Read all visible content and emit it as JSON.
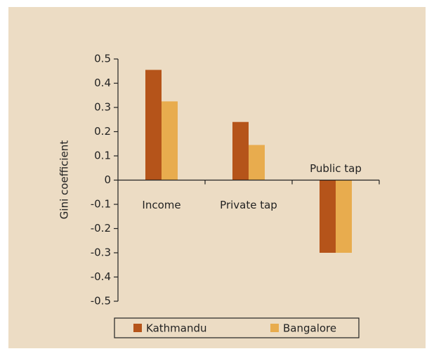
{
  "chart_data": {
    "type": "bar",
    "y_label": "Gini coefficient",
    "categories": [
      "Income",
      "Private tap",
      "Public tap"
    ],
    "series": [
      {
        "name": "Kathmandu",
        "color": "#b5541a",
        "values": [
          0.455,
          0.24,
          -0.3
        ]
      },
      {
        "name": "Bangalore",
        "color": "#e8ac4e",
        "values": [
          0.325,
          0.145,
          -0.3
        ]
      }
    ],
    "ylim": [
      -0.5,
      0.5
    ],
    "yticks": [
      -0.5,
      -0.4,
      -0.3,
      -0.2,
      -0.1,
      0,
      0.1,
      0.2,
      0.3,
      0.4,
      0.5
    ],
    "legend": "bottom"
  }
}
